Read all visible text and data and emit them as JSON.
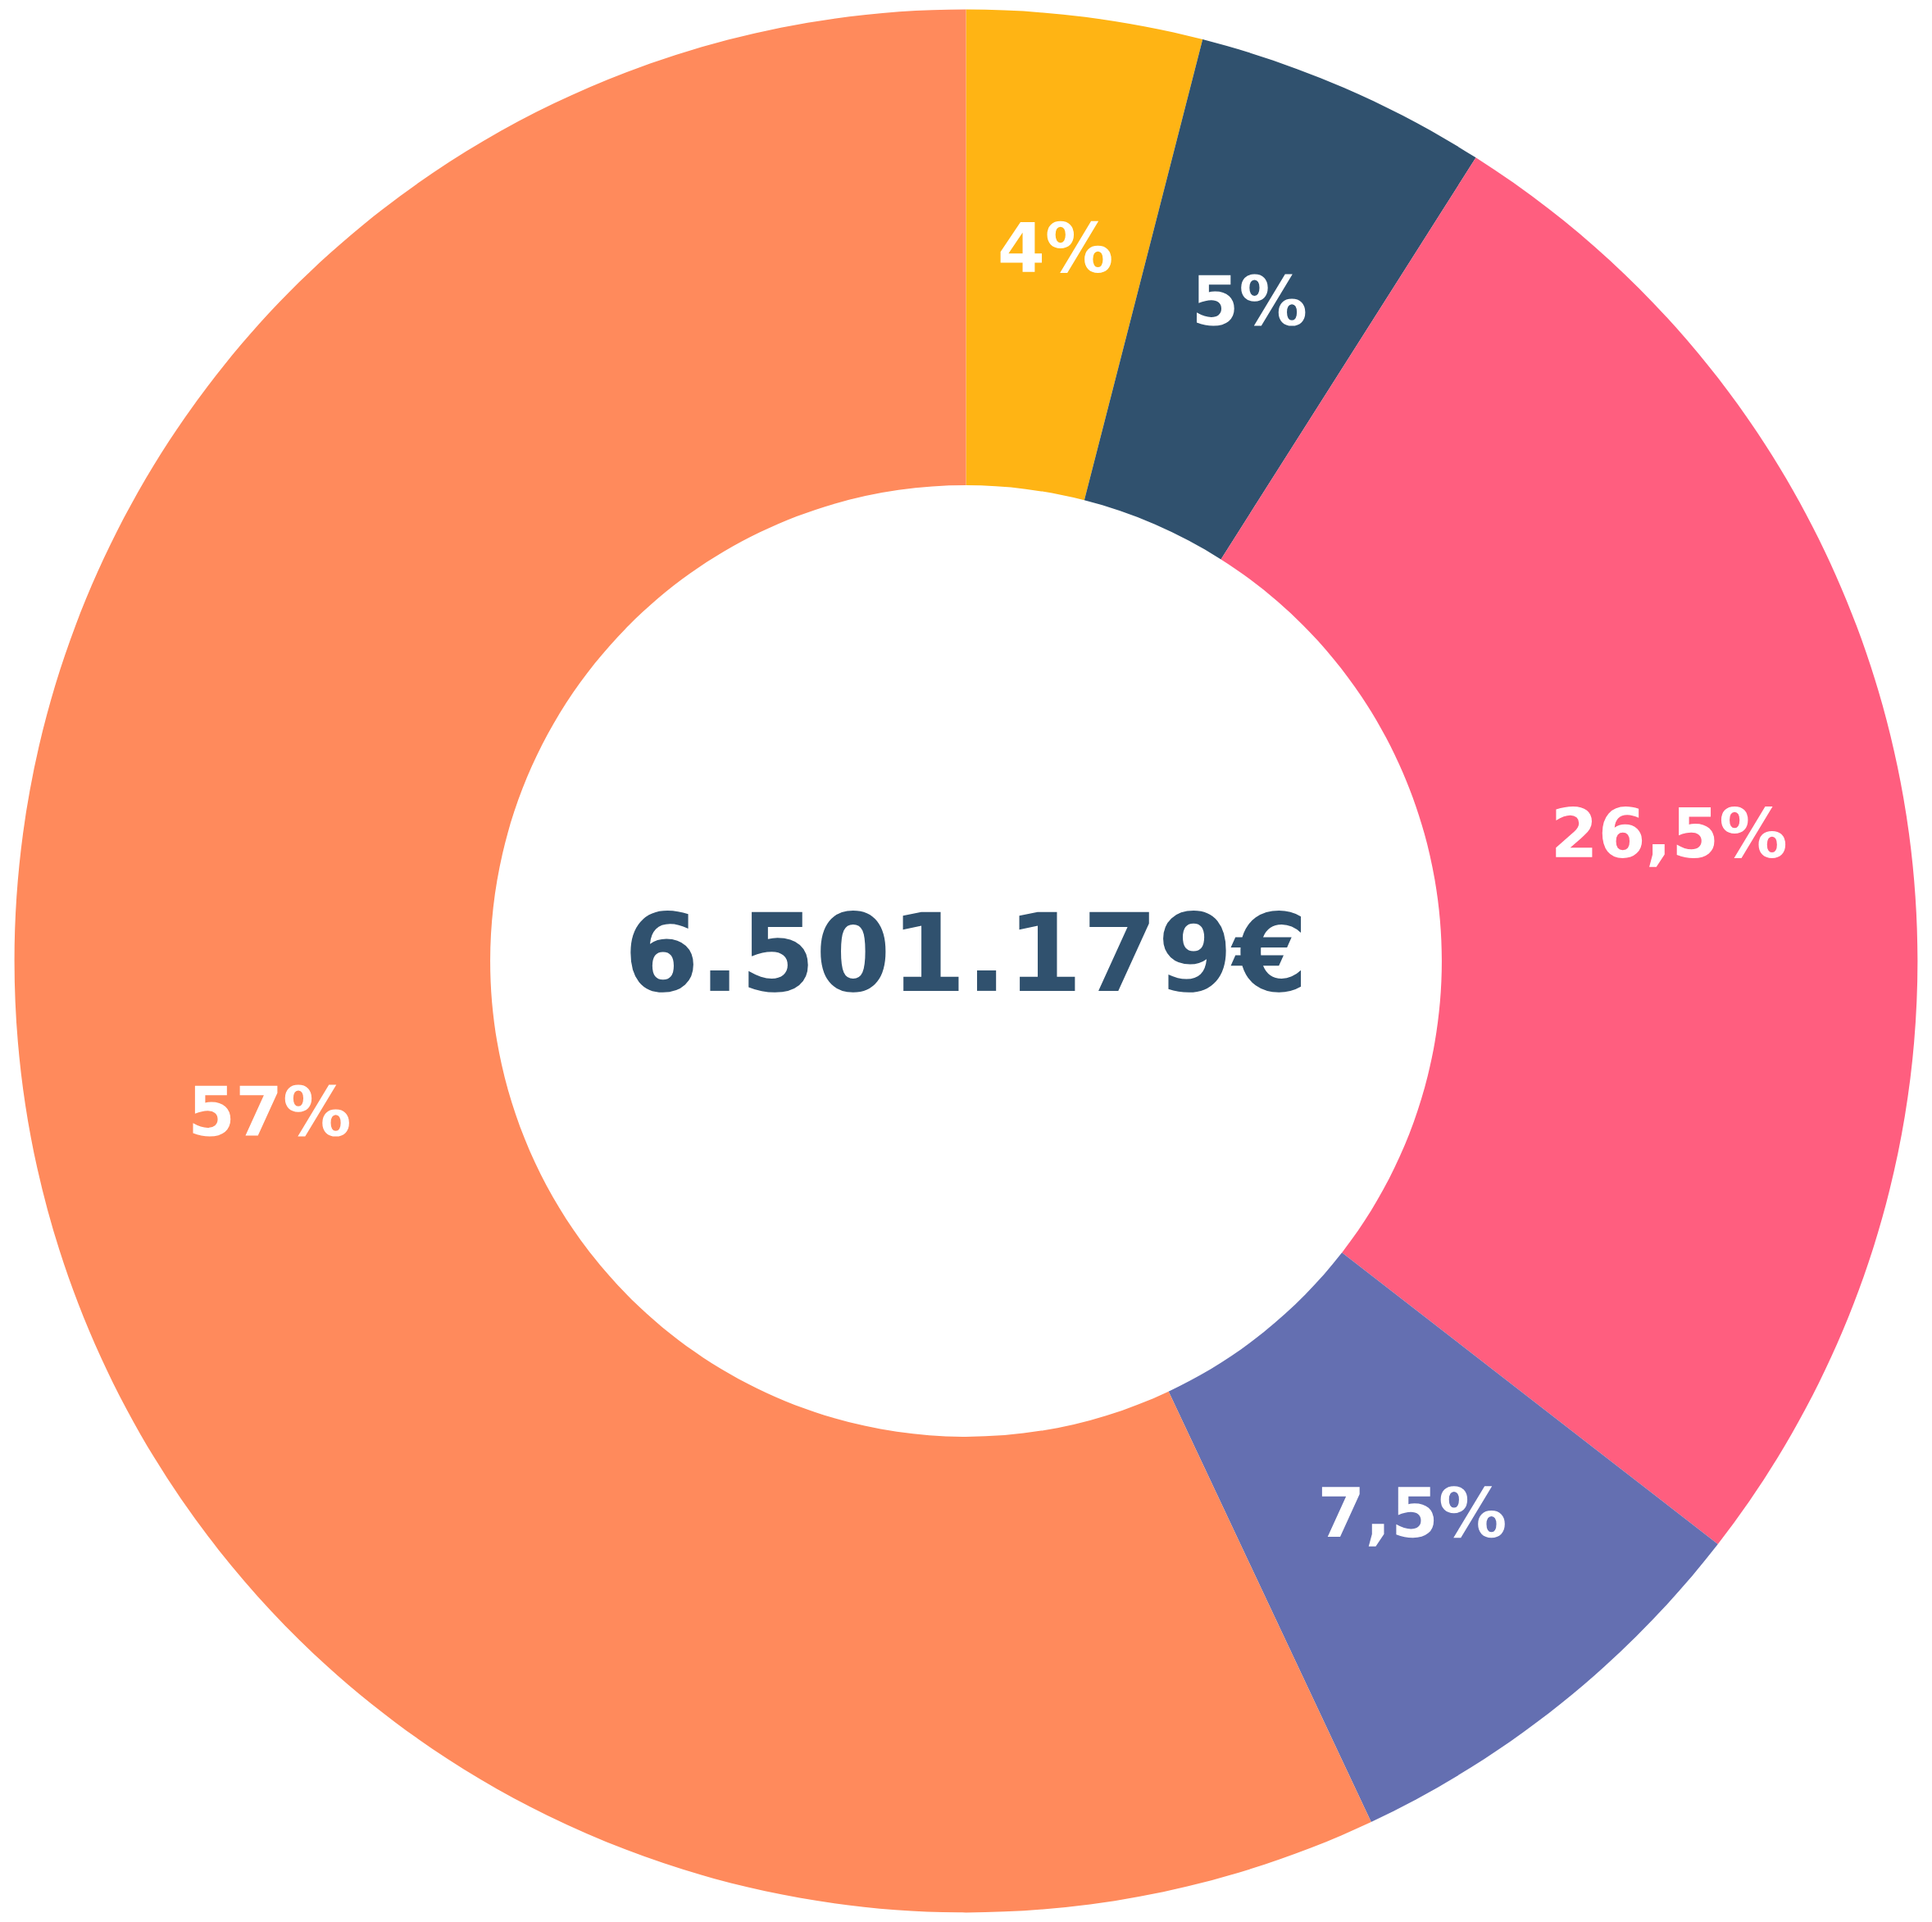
{
  "chart_data": {
    "type": "donut",
    "categories": [
      null,
      null,
      null,
      null,
      null
    ],
    "values": [
      4,
      5,
      26.5,
      7.5,
      57
    ],
    "colors": [
      "#ffb414",
      "#30516e",
      "#ff5e7f",
      "#646fb1",
      "#ff8a5c"
    ],
    "value_labels": [
      "4%",
      "5%",
      "26,5%",
      "7,5%",
      "57%"
    ],
    "annotations": [
      "6.501.179€"
    ]
  }
}
